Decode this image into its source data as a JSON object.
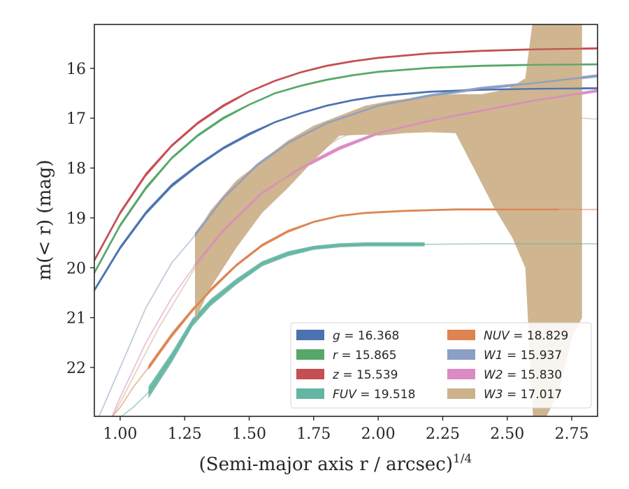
{
  "chart_data": {
    "type": "line",
    "xlabel": "(Semi-major axis r / arcsec)",
    "xlabel_sup": "1/4",
    "ylabel": "m(< r) (mag)",
    "xlim": [
      0.9,
      2.85
    ],
    "ylim": [
      22.98,
      15.12
    ],
    "xticks": [
      "1.00",
      "1.25",
      "1.50",
      "1.75",
      "2.00",
      "2.25",
      "2.50",
      "2.75"
    ],
    "yticks": [
      "16",
      "17",
      "18",
      "19",
      "20",
      "21",
      "22"
    ],
    "legend_position": "lower-right",
    "series": [
      {
        "id": "g",
        "var": "g",
        "value": "16.368",
        "color": "#4c72b0",
        "x": [
          0.9,
          1.0,
          1.1,
          1.2,
          1.3,
          1.4,
          1.5,
          1.6,
          1.7,
          1.8,
          1.9,
          2.0,
          2.2,
          2.4,
          2.6,
          2.85
        ],
        "y": [
          20.45,
          19.6,
          18.9,
          18.35,
          17.95,
          17.6,
          17.32,
          17.08,
          16.9,
          16.75,
          16.64,
          16.56,
          16.47,
          16.43,
          16.41,
          16.4
        ],
        "band": [
          0.04,
          0.04,
          0.04,
          0.04,
          0.03,
          0.03,
          0.03,
          0.02,
          0.02,
          0.02,
          0.02,
          0.02,
          0.02,
          0.02,
          0.02,
          0.02
        ]
      },
      {
        "id": "r",
        "var": "r",
        "value": "15.865",
        "color": "#55a868",
        "x": [
          0.9,
          1.0,
          1.1,
          1.2,
          1.3,
          1.4,
          1.5,
          1.6,
          1.7,
          1.8,
          1.9,
          2.0,
          2.2,
          2.4,
          2.6,
          2.85
        ],
        "y": [
          20.1,
          19.15,
          18.4,
          17.8,
          17.35,
          17.0,
          16.73,
          16.5,
          16.35,
          16.23,
          16.14,
          16.07,
          15.99,
          15.95,
          15.93,
          15.92
        ],
        "band": [
          0.04,
          0.04,
          0.04,
          0.03,
          0.03,
          0.03,
          0.02,
          0.02,
          0.02,
          0.02,
          0.02,
          0.02,
          0.02,
          0.02,
          0.02,
          0.02
        ]
      },
      {
        "id": "z",
        "var": "z",
        "value": "15.539",
        "color": "#c44e52",
        "x": [
          0.9,
          1.0,
          1.1,
          1.2,
          1.3,
          1.4,
          1.5,
          1.6,
          1.7,
          1.8,
          1.9,
          2.0,
          2.2,
          2.4,
          2.6,
          2.85
        ],
        "y": [
          19.85,
          18.9,
          18.13,
          17.55,
          17.1,
          16.75,
          16.47,
          16.25,
          16.08,
          15.95,
          15.86,
          15.79,
          15.7,
          15.65,
          15.62,
          15.6
        ],
        "band": [
          0.04,
          0.04,
          0.04,
          0.03,
          0.03,
          0.03,
          0.02,
          0.02,
          0.02,
          0.02,
          0.02,
          0.02,
          0.02,
          0.02,
          0.02,
          0.02
        ]
      },
      {
        "id": "FUV",
        "var": "FUV",
        "value": "19.518",
        "color": "#64b5a2",
        "x": [
          0.95,
          1.0,
          1.05,
          1.11,
          1.2,
          1.28,
          1.35,
          1.45,
          1.55,
          1.65,
          1.75,
          1.85,
          1.95,
          2.05,
          2.18,
          2.4,
          2.6,
          2.85
        ],
        "y": [
          23.3,
          23.0,
          22.8,
          22.5,
          21.8,
          21.1,
          20.7,
          20.28,
          19.92,
          19.72,
          19.6,
          19.55,
          19.53,
          19.53,
          19.53,
          19.52,
          19.52,
          19.52
        ],
        "band": [
          0,
          0,
          0,
          0.12,
          0.1,
          0.08,
          0.07,
          0.06,
          0.05,
          0.05,
          0.04,
          0.04,
          0.04,
          0.04,
          0.04,
          0,
          0,
          0
        ],
        "light_before": 1.11,
        "light_after": 2.18
      },
      {
        "id": "NUV",
        "var": "NUV",
        "value": "18.829",
        "color": "#dd8452",
        "x": [
          0.95,
          1.0,
          1.05,
          1.11,
          1.2,
          1.28,
          1.35,
          1.45,
          1.55,
          1.65,
          1.75,
          1.85,
          1.95,
          2.1,
          2.3,
          2.5,
          2.7,
          2.85
        ],
        "y": [
          23.1,
          22.8,
          22.4,
          22.0,
          21.35,
          20.85,
          20.45,
          19.95,
          19.55,
          19.27,
          19.08,
          18.96,
          18.9,
          18.86,
          18.83,
          18.83,
          18.83,
          18.83
        ],
        "band": [
          0,
          0,
          0,
          0.05,
          0.05,
          0.04,
          0.04,
          0.03,
          0.03,
          0.03,
          0.02,
          0.02,
          0.02,
          0.02,
          0.02,
          0.02,
          0.02,
          0
        ],
        "light_before": 1.11,
        "light_after": 2.7
      },
      {
        "id": "W1",
        "var": "W1",
        "value": "15.937",
        "color": "#8c9fc4",
        "x": [
          0.9,
          1.0,
          1.1,
          1.2,
          1.29,
          1.4,
          1.53,
          1.65,
          1.8,
          2.0,
          2.2,
          2.4,
          2.6,
          2.85
        ],
        "y": [
          23.2,
          22.0,
          20.8,
          19.9,
          19.35,
          18.6,
          17.95,
          17.5,
          17.1,
          16.75,
          16.55,
          16.4,
          16.3,
          16.15
        ],
        "band": [
          0,
          0,
          0,
          0,
          0.05,
          0.05,
          0.04,
          0.04,
          0.03,
          0.03,
          0.03,
          0.03,
          0.03,
          0.03
        ],
        "light_before": 1.29
      },
      {
        "id": "W2",
        "var": "W2",
        "value": "15.830",
        "color": "#da8bc3",
        "x": [
          0.95,
          1.0,
          1.1,
          1.2,
          1.29,
          1.4,
          1.55,
          1.7,
          1.85,
          2.0,
          2.2,
          2.4,
          2.6,
          2.85
        ],
        "y": [
          23.2,
          22.6,
          21.5,
          20.6,
          19.95,
          19.25,
          18.5,
          18.0,
          17.6,
          17.3,
          17.05,
          16.85,
          16.65,
          16.45
        ],
        "band": [
          0,
          0,
          0,
          0,
          0.05,
          0.05,
          0.04,
          0.04,
          0.04,
          0.03,
          0.03,
          0.03,
          0.03,
          0.03
        ],
        "light_before": 1.29
      },
      {
        "id": "W3",
        "var": "W3",
        "value": "17.017",
        "color": "#ccb28b",
        "x": [
          0.95,
          1.05,
          1.15,
          1.29,
          1.4,
          1.55,
          1.7,
          1.85,
          2.0,
          2.2,
          2.4,
          2.6,
          2.79,
          2.85
        ],
        "y": [
          23.2,
          22.2,
          21.2,
          20.0,
          19.3,
          18.6,
          17.9,
          17.4,
          17.1,
          17.0,
          17.0,
          17.0,
          17.0,
          17.02
        ],
        "light_before": 1.29,
        "fill_upper": [
          [
            1.29,
            19.35
          ],
          [
            1.35,
            18.85
          ],
          [
            1.45,
            18.25
          ],
          [
            1.55,
            17.85
          ],
          [
            1.65,
            17.45
          ],
          [
            1.75,
            17.15
          ],
          [
            1.85,
            16.95
          ],
          [
            1.95,
            16.75
          ],
          [
            2.05,
            16.65
          ],
          [
            2.2,
            16.55
          ],
          [
            2.3,
            16.52
          ],
          [
            2.4,
            16.52
          ],
          [
            2.5,
            16.42
          ],
          [
            2.57,
            16.2
          ],
          [
            2.6,
            15.0
          ],
          [
            2.65,
            15.0
          ],
          [
            2.75,
            15.0
          ],
          [
            2.79,
            15.0
          ]
        ],
        "fill_lower": [
          [
            1.29,
            21.05
          ],
          [
            1.35,
            20.4
          ],
          [
            1.45,
            19.6
          ],
          [
            1.55,
            18.9
          ],
          [
            1.65,
            18.4
          ],
          [
            1.75,
            17.85
          ],
          [
            1.85,
            17.35
          ],
          [
            1.95,
            17.33
          ],
          [
            2.0,
            17.35
          ],
          [
            2.1,
            17.3
          ],
          [
            2.2,
            17.28
          ],
          [
            2.3,
            17.3
          ],
          [
            2.38,
            18.1
          ],
          [
            2.45,
            18.8
          ],
          [
            2.52,
            19.4
          ],
          [
            2.57,
            20.0
          ],
          [
            2.6,
            23.0
          ],
          [
            2.65,
            23.0
          ],
          [
            2.7,
            22.5
          ],
          [
            2.75,
            21.4
          ],
          [
            2.79,
            21.0
          ]
        ]
      }
    ]
  }
}
